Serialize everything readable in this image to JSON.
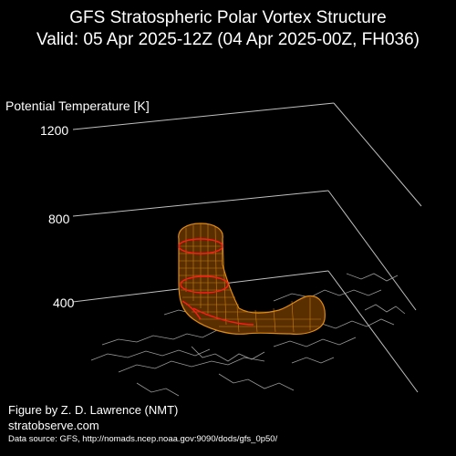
{
  "title": {
    "line1": "GFS Stratospheric Polar Vortex Structure",
    "line2": "Valid: 05 Apr 2025-12Z  (04 Apr 2025-00Z, FH036)"
  },
  "axis": {
    "label": "Potential Temperature [K]",
    "ticks": [
      "1200",
      "800",
      "400"
    ]
  },
  "credits": {
    "author": "Figure by Z. D. Lawrence (NMT)",
    "site": "stratobserve.com",
    "source": "Data source: GFS, http://nomads.ncep.noaa.gov:9090/dods/gfs_0p50/"
  },
  "colors": {
    "background": "#000000",
    "grid": "#bfbfbf",
    "coastline": "#9a9a9a",
    "vortex_outer": "#e08a10",
    "vortex_inner": "#ffb030",
    "contour": "#ff1a1a"
  }
}
